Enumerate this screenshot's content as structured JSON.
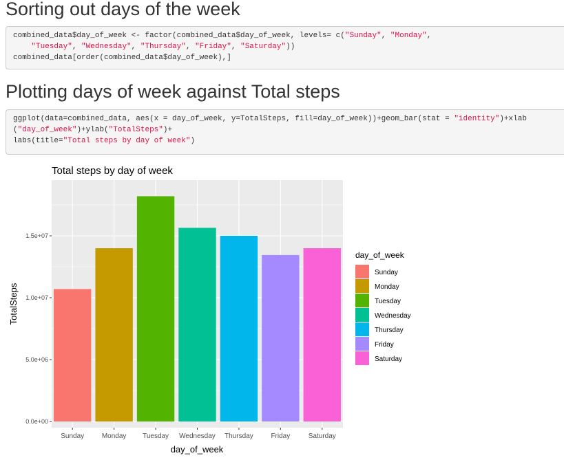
{
  "sections": [
    {
      "heading": "Sorting out days of the week",
      "code_lines": [
        [
          {
            "t": "combined_data$day_of_week <- factor(combined_data$day_of_week, levels= c("
          },
          {
            "t": "\"Sunday\"",
            "s": true
          },
          {
            "t": ", "
          },
          {
            "t": "\"Monday\"",
            "s": true
          },
          {
            "t": ","
          }
        ],
        [
          {
            "t": "    "
          },
          {
            "t": "\"Tuesday\"",
            "s": true
          },
          {
            "t": ", "
          },
          {
            "t": "\"Wednesday\"",
            "s": true
          },
          {
            "t": ", "
          },
          {
            "t": "\"Thursday\"",
            "s": true
          },
          {
            "t": ", "
          },
          {
            "t": "\"Friday\"",
            "s": true
          },
          {
            "t": ", "
          },
          {
            "t": "\"Saturday\"",
            "s": true
          },
          {
            "t": "))"
          }
        ],
        [
          {
            "t": "combined_data[order(combined_data$day_of_week),]"
          }
        ]
      ]
    },
    {
      "heading": "Plotting days of week against Total steps",
      "code_lines": [
        [
          {
            "t": "ggplot(data=combined_data, aes(x = day_of_week, y=TotalSteps, fill=day_of_week))+geom_bar(stat = "
          },
          {
            "t": "\"identity\"",
            "s": true
          },
          {
            "t": ")+xlab"
          }
        ],
        [
          {
            "t": "("
          },
          {
            "t": "\"day_of_week\"",
            "s": true
          },
          {
            "t": ")+ylab("
          },
          {
            "t": "\"TotalSteps\"",
            "s": true
          },
          {
            "t": ")+"
          }
        ],
        [
          {
            "t": "labs(title="
          },
          {
            "t": "\"Total steps by day of week\"",
            "s": true
          },
          {
            "t": ")"
          }
        ]
      ]
    }
  ],
  "chart_data": {
    "type": "bar",
    "title": "Total steps by day of week",
    "xlabel": "day_of_week",
    "ylabel": "TotalSteps",
    "categories": [
      "Sunday",
      "Monday",
      "Tuesday",
      "Wednesday",
      "Thursday",
      "Friday",
      "Saturday"
    ],
    "values": [
      10700000,
      14000000,
      18200000,
      15650000,
      15000000,
      13450000,
      14000000
    ],
    "ylim": [
      0,
      19000000
    ],
    "yticks": [
      0,
      5000000,
      10000000,
      15000000
    ],
    "ytick_labels": [
      "0.0e+00",
      "5.0e+06",
      "1.0e+07",
      "1.5e+07"
    ],
    "colors": [
      "#F8766D",
      "#C49A00",
      "#53B400",
      "#00C094",
      "#00B6EB",
      "#A58AFF",
      "#FB61D7"
    ],
    "legend": {
      "title": "day_of_week",
      "position": "right"
    },
    "grid": true,
    "panel_background": "#EBEBEB"
  }
}
